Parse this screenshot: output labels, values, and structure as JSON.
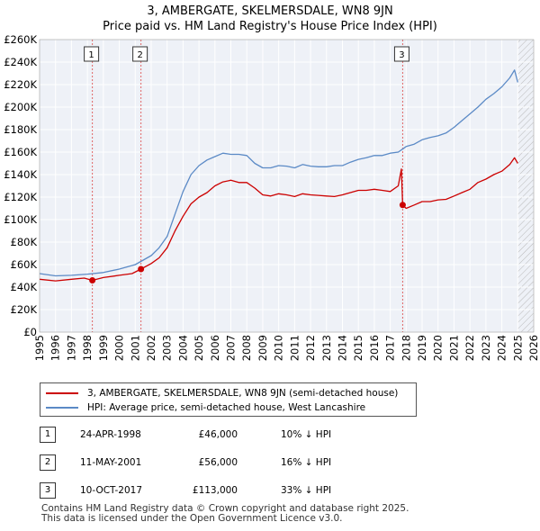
{
  "title": "3, AMBERGATE, SKELMERSDALE, WN8 9JN",
  "subtitle": "Price paid vs. HM Land Registry's House Price Index (HPI)",
  "chart_data": {
    "type": "line",
    "xlim": [
      1995,
      2026
    ],
    "ylim": [
      0,
      260000
    ],
    "x_ticks": [
      "1995",
      "1996",
      "1997",
      "1998",
      "1999",
      "2000",
      "2001",
      "2002",
      "2003",
      "2004",
      "2005",
      "2006",
      "2007",
      "2008",
      "2009",
      "2010",
      "2011",
      "2012",
      "2013",
      "2014",
      "2015",
      "2016",
      "2017",
      "2018",
      "2019",
      "2020",
      "2021",
      "2022",
      "2023",
      "2024",
      "2025",
      "2026"
    ],
    "y_ticks": [
      {
        "value": 0,
        "label": "£0"
      },
      {
        "value": 20000,
        "label": "£20K"
      },
      {
        "value": 40000,
        "label": "£40K"
      },
      {
        "value": 60000,
        "label": "£60K"
      },
      {
        "value": 80000,
        "label": "£80K"
      },
      {
        "value": 100000,
        "label": "£100K"
      },
      {
        "value": 120000,
        "label": "£120K"
      },
      {
        "value": 140000,
        "label": "£140K"
      },
      {
        "value": 160000,
        "label": "£160K"
      },
      {
        "value": 180000,
        "label": "£180K"
      },
      {
        "value": 200000,
        "label": "£200K"
      },
      {
        "value": 220000,
        "label": "£220K"
      },
      {
        "value": 240000,
        "label": "£240K"
      },
      {
        "value": 260000,
        "label": "£260K"
      }
    ],
    "grid": true,
    "hatch_from": 2025.0,
    "series": [
      {
        "name": "3, AMBERGATE, SKELMERSDALE, WN8 9JN (semi-detached house)",
        "color": "#cc0000",
        "x": [
          1995.0,
          1996.0,
          1997.0,
          1997.8,
          1998.31,
          1999.0,
          2000.0,
          2000.8,
          2001.36,
          2002.0,
          2002.5,
          2003.0,
          2003.5,
          2004.0,
          2004.5,
          2005.0,
          2005.5,
          2006.0,
          2006.5,
          2007.0,
          2007.5,
          2008.0,
          2008.5,
          2009.0,
          2009.5,
          2010.0,
          2010.5,
          2011.0,
          2011.5,
          2012.0,
          2012.5,
          2013.0,
          2013.5,
          2014.0,
          2014.5,
          2015.0,
          2015.5,
          2016.0,
          2016.5,
          2017.0,
          2017.5,
          2017.7,
          2017.78,
          2018.0,
          2018.5,
          2019.0,
          2019.5,
          2020.0,
          2020.5,
          2021.0,
          2021.5,
          2022.0,
          2022.5,
          2023.0,
          2023.5,
          2024.0,
          2024.5,
          2024.8,
          2025.0
        ],
        "y": [
          47000,
          45500,
          47000,
          48000,
          46000,
          48500,
          50500,
          52000,
          56000,
          61000,
          66000,
          75000,
          90000,
          103000,
          114000,
          120000,
          124000,
          130000,
          133500,
          135000,
          133000,
          133000,
          128000,
          122000,
          121000,
          123000,
          122000,
          120500,
          123000,
          122000,
          121500,
          121000,
          120500,
          122000,
          124000,
          126000,
          126000,
          127000,
          126000,
          125000,
          130000,
          145000,
          113000,
          110000,
          113000,
          116000,
          116000,
          117500,
          118000,
          121000,
          124000,
          127000,
          133000,
          136000,
          140000,
          143000,
          149000,
          155000,
          150000
        ]
      },
      {
        "name": "HPI: Average price, semi-detached house, West Lancashire",
        "color": "#5b8ac6",
        "x": [
          1995.0,
          1996.0,
          1997.0,
          1998.0,
          1999.0,
          2000.0,
          2001.0,
          2002.0,
          2002.5,
          2003.0,
          2003.5,
          2004.0,
          2004.5,
          2005.0,
          2005.5,
          2006.0,
          2006.5,
          2007.0,
          2007.5,
          2008.0,
          2008.5,
          2009.0,
          2009.5,
          2010.0,
          2010.5,
          2011.0,
          2011.5,
          2012.0,
          2012.5,
          2013.0,
          2013.5,
          2014.0,
          2014.5,
          2015.0,
          2015.5,
          2016.0,
          2016.5,
          2017.0,
          2017.5,
          2017.8,
          2018.0,
          2018.5,
          2019.0,
          2019.5,
          2020.0,
          2020.5,
          2021.0,
          2021.5,
          2022.0,
          2022.5,
          2023.0,
          2023.5,
          2024.0,
          2024.5,
          2024.8,
          2025.0
        ],
        "y": [
          52000,
          50000,
          50500,
          51500,
          53000,
          56000,
          60000,
          68000,
          75000,
          85000,
          105000,
          125000,
          140000,
          148000,
          153000,
          156000,
          159000,
          158000,
          158000,
          157000,
          150000,
          146000,
          146000,
          148000,
          147500,
          146000,
          149000,
          147500,
          147000,
          147000,
          148000,
          148000,
          151000,
          153500,
          155000,
          157000,
          157000,
          159000,
          160000,
          163000,
          165000,
          167000,
          171000,
          173000,
          174500,
          177000,
          182000,
          188000,
          194000,
          200000,
          207000,
          212000,
          218000,
          226000,
          233000,
          222000
        ]
      }
    ],
    "sales": [
      {
        "marker": "1",
        "x": 1998.31,
        "y": 46000
      },
      {
        "marker": "2",
        "x": 2001.36,
        "y": 56000
      },
      {
        "marker": "3",
        "x": 2017.78,
        "y": 113000
      }
    ]
  },
  "legend": {
    "property_label": "3, AMBERGATE, SKELMERSDALE, WN8 9JN (semi-detached house)",
    "hpi_label": "HPI: Average price, semi-detached house, West Lancashire"
  },
  "sales_table": [
    {
      "marker": "1",
      "date": "24-APR-1998",
      "price": "£46,000",
      "delta": "10% ↓ HPI"
    },
    {
      "marker": "2",
      "date": "11-MAY-2001",
      "price": "£56,000",
      "delta": "16% ↓ HPI"
    },
    {
      "marker": "3",
      "date": "10-OCT-2017",
      "price": "£113,000",
      "delta": "33% ↓ HPI"
    }
  ],
  "footer": {
    "line1": "Contains HM Land Registry data © Crown copyright and database right 2025.",
    "line2": "This data is licensed under the Open Government Licence v3.0."
  }
}
